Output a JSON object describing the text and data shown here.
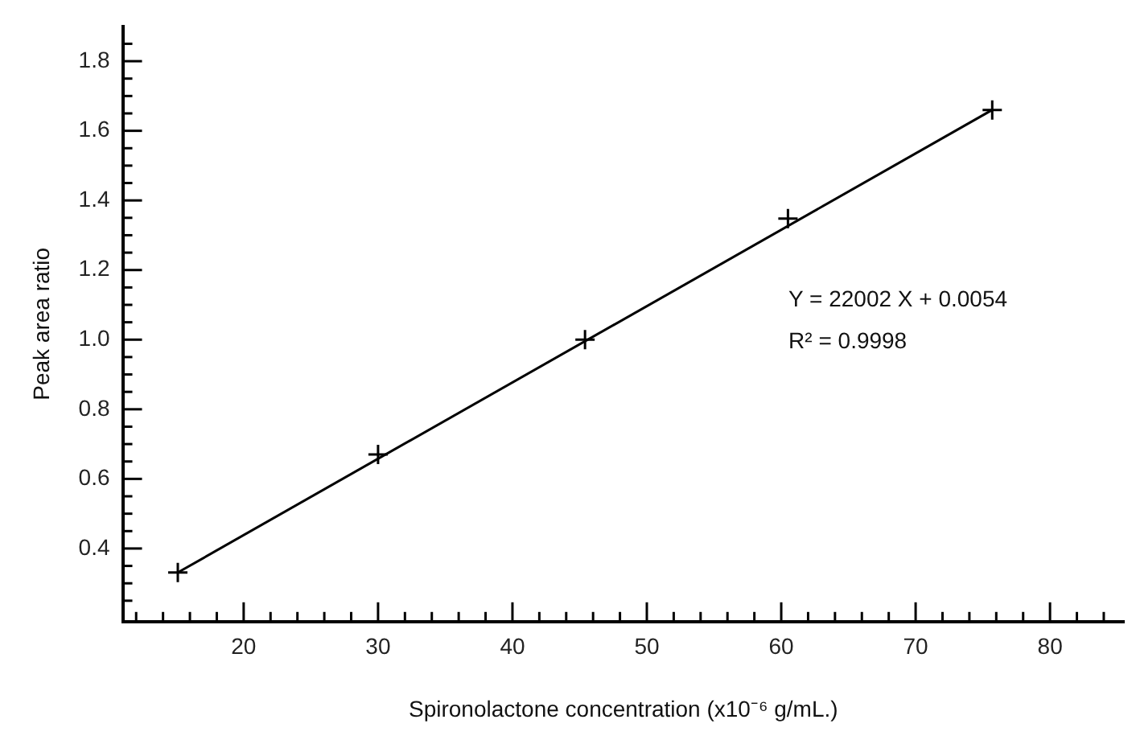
{
  "chart_data": {
    "type": "scatter",
    "xlabel": "Spironolactone concentration (x10⁻⁶ g/mL.)",
    "ylabel": "Peak area ratio",
    "series": [
      {
        "color": "#000000",
        "marker": "cross",
        "x": [
          15.1,
          30,
          45.4,
          60.5,
          75.7
        ],
        "values": [
          0.331,
          0.67,
          1.0,
          1.348,
          1.66
        ]
      },
      {
        "type": "line",
        "color": "#000000",
        "marker": "none",
        "line_style": "solid",
        "x": [
          15.1,
          75.7
        ],
        "values": [
          0.331,
          1.66
        ]
      }
    ],
    "annotations": [
      "Y = 22002 X + 0.0054",
      "R² = 0.9998"
    ],
    "xlim": [
      11,
      85.5
    ],
    "ylim": [
      0.19,
      1.9
    ],
    "xticks": [
      {
        "value": 12,
        "label": null
      },
      {
        "value": 14,
        "label": null
      },
      {
        "value": 16,
        "label": null
      },
      {
        "value": 18,
        "label": null
      },
      20,
      {
        "value": 22,
        "label": null
      },
      {
        "value": 24,
        "label": null
      },
      {
        "value": 26,
        "label": null
      },
      {
        "value": 28,
        "label": null
      },
      30,
      {
        "value": 32,
        "label": null
      },
      {
        "value": 34,
        "label": null
      },
      {
        "value": 36,
        "label": null
      },
      {
        "value": 38,
        "label": null
      },
      40,
      {
        "value": 42,
        "label": null
      },
      {
        "value": 44,
        "label": null
      },
      {
        "value": 46,
        "label": null
      },
      {
        "value": 48,
        "label": null
      },
      50,
      {
        "value": 52,
        "label": null
      },
      {
        "value": 54,
        "label": null
      },
      {
        "value": 56,
        "label": null
      },
      {
        "value": 58,
        "label": null
      },
      60,
      {
        "value": 62,
        "label": null
      },
      {
        "value": 64,
        "label": null
      },
      {
        "value": 66,
        "label": null
      },
      {
        "value": 68,
        "label": null
      },
      70,
      {
        "value": 72,
        "label": null
      },
      {
        "value": 74,
        "label": null
      },
      {
        "value": 76,
        "label": null
      },
      {
        "value": 78,
        "label": null
      },
      80,
      {
        "value": 82,
        "label": null
      },
      {
        "value": 84,
        "label": null
      }
    ],
    "yticks": [
      {
        "value": 0.25,
        "label": null
      },
      {
        "value": 0.3,
        "label": null
      },
      {
        "value": 0.35,
        "label": null
      },
      0.4,
      {
        "value": 0.45,
        "label": null
      },
      {
        "value": 0.5,
        "label": null
      },
      {
        "value": 0.55,
        "label": null
      },
      0.6,
      {
        "value": 0.65,
        "label": null
      },
      {
        "value": 0.7,
        "label": null
      },
      {
        "value": 0.75,
        "label": null
      },
      0.8,
      {
        "value": 0.85,
        "label": null
      },
      {
        "value": 0.9,
        "label": null
      },
      {
        "value": 0.95,
        "label": null
      },
      {
        "value": 1,
        "label": "1.0"
      },
      {
        "value": 1.05,
        "label": null
      },
      {
        "value": 1.1,
        "label": null
      },
      {
        "value": 1.15,
        "label": null
      },
      1.2,
      {
        "value": 1.25,
        "label": null
      },
      {
        "value": 1.3,
        "label": null
      },
      {
        "value": 1.35,
        "label": null
      },
      1.4,
      {
        "value": 1.45,
        "label": null
      },
      {
        "value": 1.5,
        "label": null
      },
      {
        "value": 1.55,
        "label": null
      },
      1.6,
      {
        "value": 1.65,
        "label": null
      },
      {
        "value": 1.7,
        "label": null
      },
      {
        "value": 1.75,
        "label": null
      },
      1.8,
      {
        "value": 1.85,
        "label": null
      }
    ],
    "grid": false,
    "legend": false
  }
}
